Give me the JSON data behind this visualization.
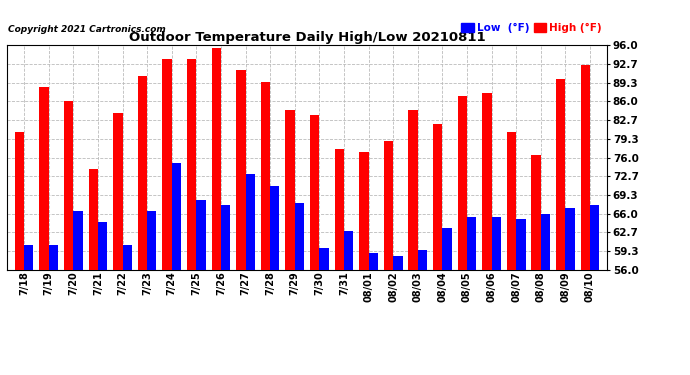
{
  "title": "Outdoor Temperature Daily High/Low 20210811",
  "copyright": "Copyright 2021 Cartronics.com",
  "categories": [
    "7/18",
    "7/19",
    "7/20",
    "7/21",
    "7/22",
    "7/23",
    "7/24",
    "7/25",
    "7/26",
    "7/27",
    "7/28",
    "7/29",
    "7/30",
    "7/31",
    "08/01",
    "08/02",
    "08/03",
    "08/04",
    "08/05",
    "08/06",
    "08/07",
    "08/08",
    "08/09",
    "08/10"
  ],
  "high": [
    80.5,
    88.5,
    86.0,
    74.0,
    84.0,
    90.5,
    93.5,
    93.5,
    95.5,
    91.5,
    89.5,
    84.5,
    83.5,
    77.5,
    77.0,
    79.0,
    84.5,
    82.0,
    87.0,
    87.5,
    80.5,
    76.5,
    90.0,
    92.5
  ],
  "low": [
    60.5,
    60.5,
    66.5,
    64.5,
    60.5,
    66.5,
    75.0,
    68.5,
    67.5,
    73.0,
    71.0,
    68.0,
    60.0,
    63.0,
    59.0,
    58.5,
    59.5,
    63.5,
    65.5,
    65.5,
    65.0,
    66.0,
    67.0,
    67.5
  ],
  "ylim": [
    56.0,
    96.0
  ],
  "yticks": [
    56.0,
    59.3,
    62.7,
    66.0,
    69.3,
    72.7,
    76.0,
    79.3,
    82.7,
    86.0,
    89.3,
    92.7,
    96.0
  ],
  "bar_width": 0.38,
  "high_color": "#ff0000",
  "low_color": "#0000ff",
  "bg_color": "#ffffff",
  "grid_color": "#bbbbbb",
  "title_color": "#000000",
  "legend_low_color": "#0000ff",
  "legend_high_color": "#ff0000"
}
